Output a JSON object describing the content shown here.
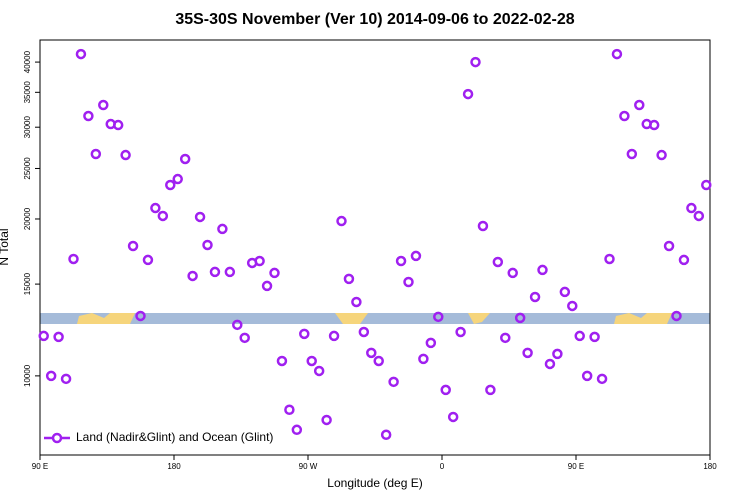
{
  "chart_data": {
    "type": "scatter",
    "title": "35S-30S November (Ver 10)   2014-09-06 to 2022-02-28",
    "xlabel": "Longitude (deg E)",
    "ylabel": "N Total",
    "x": [
      92.5,
      97.5,
      102.5,
      107.5,
      112.5,
      117.5,
      122.5,
      127.5,
      132.5,
      137.5,
      142.5,
      147.5,
      152.5,
      157.5,
      162.5,
      167.5,
      172.5,
      177.5,
      182.5,
      187.5,
      192.5,
      197.5,
      202.5,
      207.5,
      212.5,
      217.5,
      222.5,
      227.5,
      232.5,
      237.5,
      242.5,
      247.5,
      252.5,
      257.5,
      262.5,
      267.5,
      272.5,
      277.5,
      282.5,
      287.5,
      292.5,
      297.5,
      302.5,
      307.5,
      312.5,
      317.5,
      322.5,
      327.5,
      332.5,
      337.5,
      342.5,
      347.5,
      352.5,
      357.5,
      362.5,
      367.5,
      372.5,
      377.5,
      382.5,
      387.5,
      392.5,
      397.5,
      402.5,
      407.5,
      412.5,
      417.5,
      422.5,
      427.5,
      432.5,
      437.5,
      442.5,
      447.5,
      452.5,
      457.5,
      462.5,
      467.5,
      472.5,
      477.5,
      482.5,
      487.5,
      492.5,
      497.5,
      502.5,
      507.5,
      512.5,
      517.5,
      522.5,
      527.5,
      532.5,
      537.5
    ],
    "series": [
      {
        "name": "Land (Nadir&Glint) and Ocean (Glint)",
        "color": "#a020f0",
        "values": [
          11930,
          10000,
          11880,
          9870,
          16760,
          41440,
          31520,
          26650,
          33090,
          30420,
          30290,
          26530,
          17750,
          13030,
          16690,
          20990,
          20270,
          23240,
          23860,
          26070,
          15550,
          20180,
          17830,
          15830,
          19140,
          15830,
          12530,
          11830,
          16470,
          16610,
          14880,
          15760,
          10680,
          8610,
          7880,
          12040,
          10680,
          10220,
          8230,
          11930,
          19820,
          15350,
          13860,
          12140,
          11070,
          10680,
          7710,
          9740,
          16610,
          15140,
          16990,
          10780,
          11570,
          12980,
          9400,
          8340,
          12140,
          34730,
          40000,
          19390,
          9400,
          16540,
          11830,
          15760,
          12920,
          11070,
          14170,
          15970,
          10540,
          11020,
          14490,
          13620,
          11930,
          10000,
          11880,
          9870,
          16760,
          41440,
          31520,
          26650,
          33090,
          30420,
          30290,
          26530,
          17750,
          13030,
          16690,
          20990,
          20270,
          23240
        ]
      }
    ],
    "xlim": [
      90,
      540
    ],
    "xticks": [
      {
        "value": 90,
        "label": "90 E"
      },
      {
        "value": 180,
        "label": "180"
      },
      {
        "value": 270,
        "label": "90 W"
      },
      {
        "value": 360,
        "label": "0"
      },
      {
        "value": 450,
        "label": "90 E"
      },
      {
        "value": 540,
        "label": "180"
      }
    ],
    "ylim": [
      7050,
      44100
    ],
    "yticks": [
      10000,
      15000,
      20000,
      25000,
      30000,
      35000,
      40000
    ],
    "ylog": true,
    "legend": "bottom-left"
  }
}
